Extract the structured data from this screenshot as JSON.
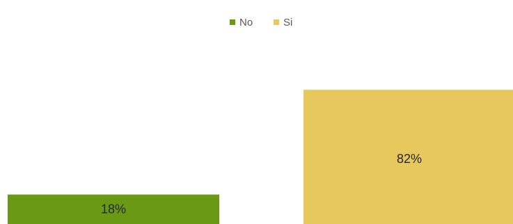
{
  "chart_data": {
    "type": "bar",
    "categories": [
      "No",
      "Si"
    ],
    "values": [
      18,
      82
    ],
    "data_labels": [
      "18%",
      "82%"
    ],
    "series": [
      {
        "name": "No",
        "color": "#6a9a13"
      },
      {
        "name": "Si",
        "color": "#e6c85c"
      }
    ],
    "ylim": [
      0,
      100
    ],
    "legend_position": "top-center",
    "grid": false,
    "axes_visible": false
  }
}
